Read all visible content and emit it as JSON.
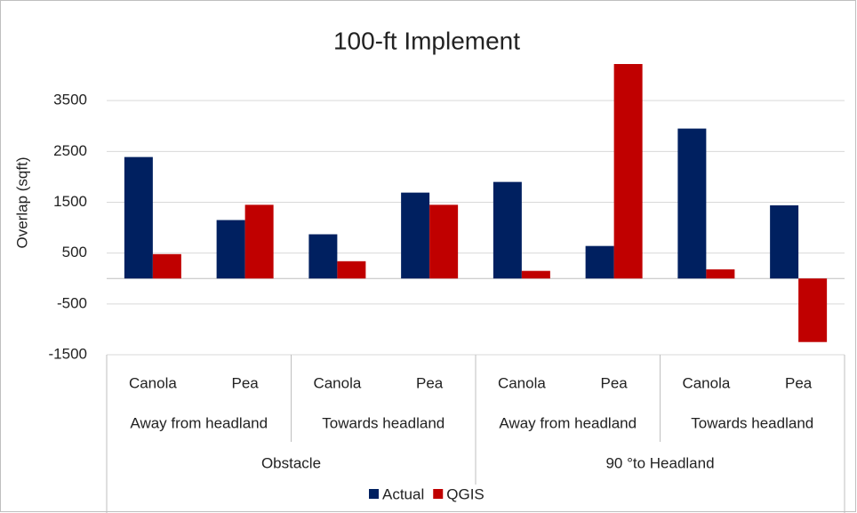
{
  "chart_data": {
    "type": "bar",
    "title": "100-ft Implement",
    "y_label": "Overlap (sqft)",
    "categories": [
      "Canola",
      "Pea",
      "Canola",
      "Pea",
      "Canola",
      "Pea",
      "Canola",
      "Pea"
    ],
    "subgroups": [
      "Away from headland",
      "Towards headland",
      "Away from headland",
      "Towards headland"
    ],
    "groups": [
      "Obstacle",
      "90 °to Headland"
    ],
    "series": [
      {
        "name": "Actual",
        "color": "#002060",
        "values": [
          2390,
          1150,
          870,
          1690,
          1900,
          640,
          2950,
          1440
        ]
      },
      {
        "name": "QGIS",
        "color": "#c00000",
        "values": [
          480,
          1450,
          340,
          1450,
          150,
          4220,
          180,
          -1250
        ]
      }
    ],
    "ylim": [
      -1500,
      4500
    ],
    "yticks": [
      -1500,
      -500,
      500,
      1500,
      2500,
      3500
    ],
    "grid": true,
    "legend": "bottom"
  }
}
